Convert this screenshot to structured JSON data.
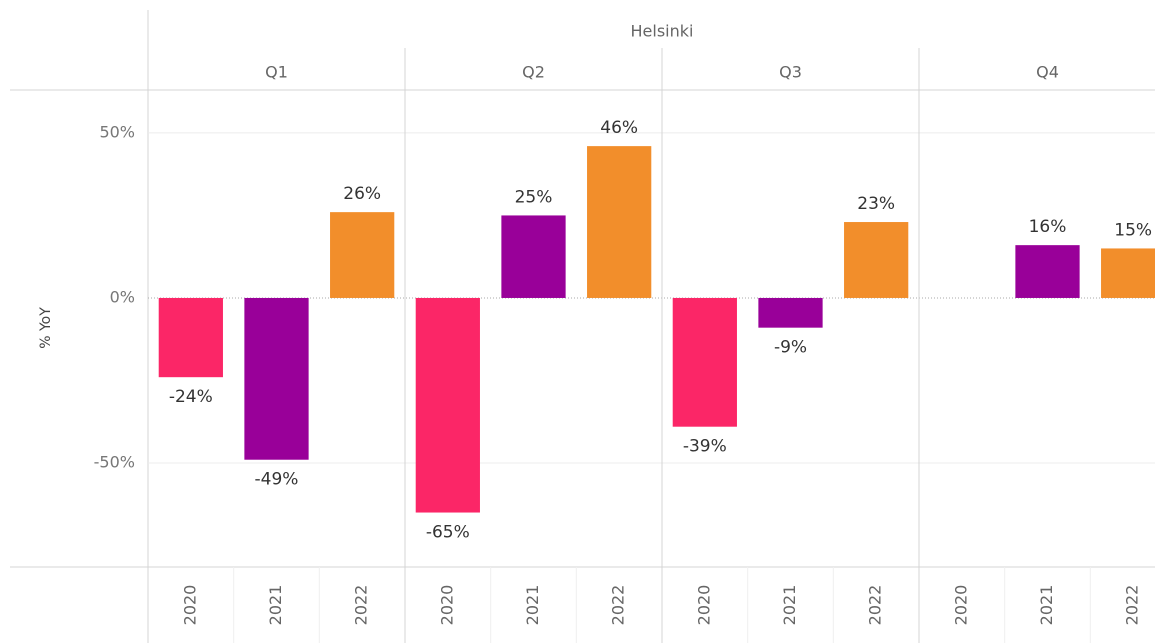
{
  "chart_data": {
    "type": "bar",
    "panel_title": "Helsinki",
    "ylabel": "% YoY",
    "categories": [
      "Q1",
      "Q2",
      "Q3",
      "Q4"
    ],
    "series": [
      {
        "name": "2020",
        "color": "#fb2667",
        "values": [
          -24,
          -65,
          -39,
          null
        ],
        "value_labels": [
          "-24%",
          "-65%",
          "-39%",
          null
        ]
      },
      {
        "name": "2021",
        "color": "#990099",
        "values": [
          -49,
          25,
          -9,
          16
        ],
        "value_labels": [
          "-49%",
          "25%",
          "-9%",
          "16%"
        ]
      },
      {
        "name": "2022",
        "color": "#f28e2b",
        "values": [
          26,
          46,
          23,
          15
        ],
        "value_labels": [
          "26%",
          "46%",
          "23%",
          "15%"
        ]
      }
    ],
    "ylim": [
      -81.5,
      63
    ],
    "yticks": [
      {
        "value": -50,
        "label": "-50%"
      },
      {
        "value": 0,
        "label": "0%"
      },
      {
        "value": 50,
        "label": "50%"
      }
    ],
    "grid": true
  }
}
